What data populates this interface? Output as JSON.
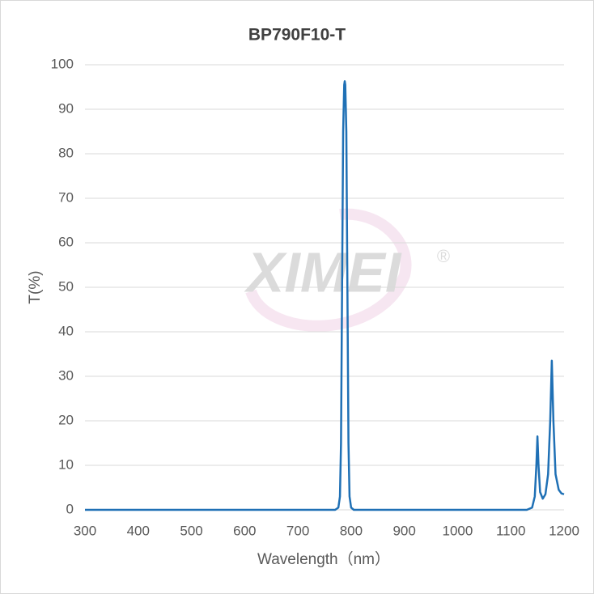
{
  "chart_data": {
    "type": "line",
    "title": "BP790F10-T",
    "x_label": "Wavelength（nm）",
    "y_label": "T(%)",
    "watermark": "XIMEI",
    "watermark_mark": "®",
    "x": [
      300,
      770,
      776,
      779,
      781,
      783,
      785,
      787,
      788,
      789,
      791,
      793,
      795,
      797,
      800,
      805,
      1130,
      1140,
      1145,
      1148,
      1150,
      1152,
      1155,
      1160,
      1165,
      1170,
      1174,
      1177,
      1180,
      1184,
      1190,
      1195,
      1200
    ],
    "series": [
      {
        "name": "T",
        "color": "#1f70b5",
        "values": [
          0,
          0,
          0.5,
          3,
          15,
          50,
          85,
          95.5,
          96.3,
          95.5,
          85,
          50,
          15,
          3,
          0.5,
          0,
          0,
          0.5,
          3,
          10,
          16.5,
          10,
          4,
          2.5,
          3.5,
          8,
          20,
          33.5,
          20,
          8,
          4.5,
          3.7,
          3.5
        ]
      }
    ],
    "xlim": [
      300,
      1200
    ],
    "xticks": [
      300,
      400,
      500,
      600,
      700,
      800,
      900,
      1000,
      1100,
      1200
    ],
    "ylim": [
      0,
      100
    ],
    "yticks": [
      0,
      10,
      20,
      30,
      40,
      50,
      60,
      70,
      80,
      90,
      100
    ],
    "grid": true
  }
}
